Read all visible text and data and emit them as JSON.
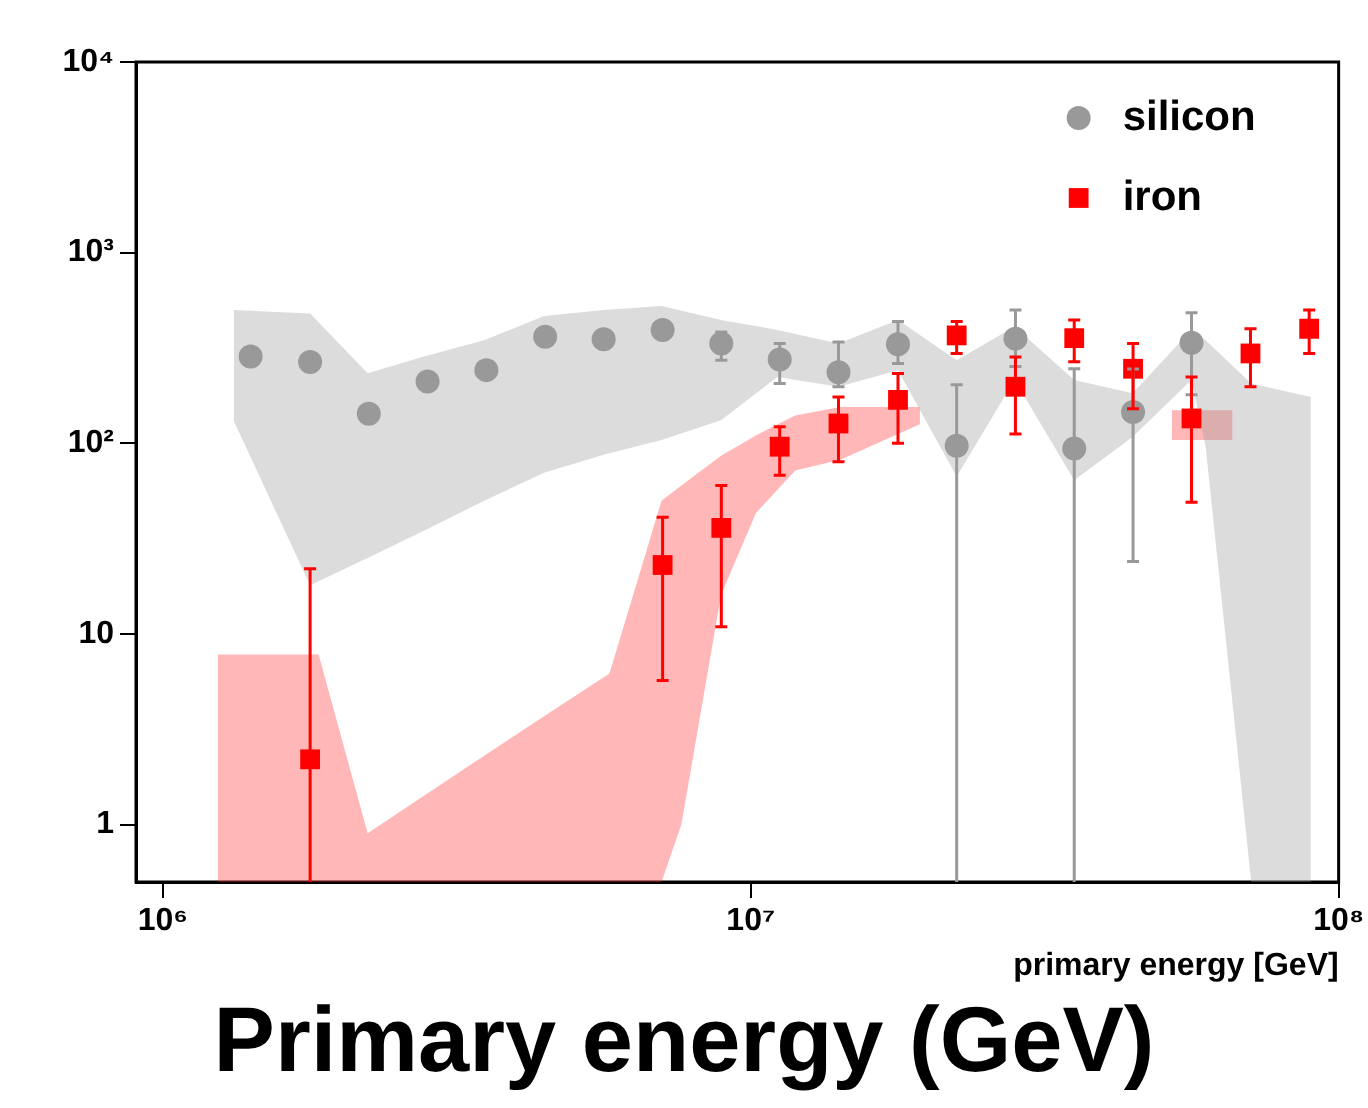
{
  "chart_data": {
    "type": "scatter",
    "xlabel": "primary energy [GeV]",
    "annotations": [
      "Primary energy (GeV)"
    ],
    "log": "xy",
    "xlim": [
      900000,
      100000000
    ],
    "ylim": [
      0.5,
      10000
    ],
    "xticks": [
      {
        "value": 1000000,
        "label": "10⁶"
      },
      {
        "value": 10000000,
        "label": "10⁷"
      },
      {
        "value": 100000000,
        "label": "10⁸"
      }
    ],
    "yticks": [
      1,
      10,
      {
        "value": 100,
        "label": "10²"
      },
      {
        "value": 1000,
        "label": "10³"
      },
      {
        "value": 10000,
        "label": "10⁴"
      }
    ],
    "grid": false,
    "legend": "top right",
    "series": [
      {
        "type": "area",
        "color": "#9a9a9a",
        "values": [
          null,
          null,
          null,
          null,
          null,
          null,
          null,
          null,
          null,
          null,
          null,
          null,
          null,
          null,
          null,
          null,
          null,
          null,
          null,
          null
        ],
        "x": [
          1320000,
          1780000,
          2230000,
          2790000,
          3520000,
          4450000,
          5620000,
          7050000,
          8900000,
          11100000,
          14100000,
          17800000,
          22400000,
          28100000,
          35500000,
          44600000,
          56200000,
          59400000,
          71000000,
          89700000
        ],
        "lower": [
          131,
          18,
          25,
          35,
          50,
          70,
          87,
          104,
          132,
          223,
          198,
          242,
          67,
          215,
          64,
          108,
          215,
          96,
          0.5,
          0.5
        ],
        "upper": [
          500,
          480,
          233,
          286,
          347,
          465,
          500,
          525,
          443,
          393,
          334,
          443,
          273,
          409,
          215,
          183,
          393,
          347,
          206,
          175
        ]
      },
      {
        "type": "area",
        "color": "#ff3030",
        "values": [
          null,
          null,
          null,
          null,
          null,
          null,
          null,
          null,
          null,
          null,
          null,
          null,
          null
        ],
        "x": [
          1240000,
          1840000,
          2230000,
          3520000,
          4450000,
          5750000,
          7050000,
          7620000,
          8900000,
          10200000,
          11900000,
          14200000,
          19400000
        ],
        "lower": [
          0.5,
          0.5,
          0.5,
          0.5,
          0.5,
          0.5,
          0.5,
          1,
          16,
          43,
          72,
          82,
          126
        ],
        "upper": [
          7.8,
          7.8,
          0.9,
          2.3,
          3.7,
          6.2,
          50,
          60,
          86,
          110,
          140,
          155,
          155
        ]
      },
      {
        "type": "area",
        "color": "#ff3030",
        "values": [
          null,
          null
        ],
        "x": [
          52000000,
          66000000
        ],
        "lower": [
          104,
          104
        ],
        "upper": [
          149,
          149
        ]
      },
      {
        "name": "silicon",
        "color": "#999999",
        "marker": "circle",
        "x": [
          1410000,
          1780000,
          2240000,
          2820000,
          3550000,
          4470000,
          5620000,
          7080000,
          8910000,
          11200000,
          14100000,
          17800000,
          22400000,
          28200000,
          35500000,
          44700000,
          56200000
        ],
        "values": [
          285,
          267,
          143,
          211,
          242,
          362,
          351,
          393,
          334,
          275,
          236,
          331,
          97,
          354,
          94,
          146,
          337
        ],
        "errors": [
          null,
          null,
          null,
          null,
          null,
          null,
          null,
          null,
          [
            273,
            383
          ],
          [
            206,
            334
          ],
          [
            198,
            340
          ],
          [
            262,
            435
          ],
          [
            0.5,
            203
          ],
          [
            253,
            500
          ],
          [
            0.5,
            246
          ],
          [
            24,
            245
          ],
          [
            180,
            484
          ]
        ]
      },
      {
        "name": "iron",
        "color": "#ff0000",
        "marker": "square",
        "x": [
          1780000,
          7080000,
          8910000,
          11200000,
          14100000,
          17800000,
          22400000,
          28200000,
          35500000,
          44700000,
          56200000,
          70800000,
          89100000
        ],
        "values": [
          2.2,
          23,
          36,
          96,
          127,
          169,
          368,
          198,
          356,
          246,
          135,
          296,
          399
        ],
        "errors": [
          [
            0.5,
            22
          ],
          [
            5.7,
            41
          ],
          [
            10.9,
            60
          ],
          [
            68,
            122
          ],
          [
            80,
            175
          ],
          [
            100,
            232
          ],
          [
            296,
            435
          ],
          [
            112,
            284
          ],
          [
            268,
            443
          ],
          [
            152,
            334
          ],
          [
            49,
            223
          ],
          [
            198,
            399
          ],
          [
            296,
            500
          ]
        ]
      }
    ]
  }
}
